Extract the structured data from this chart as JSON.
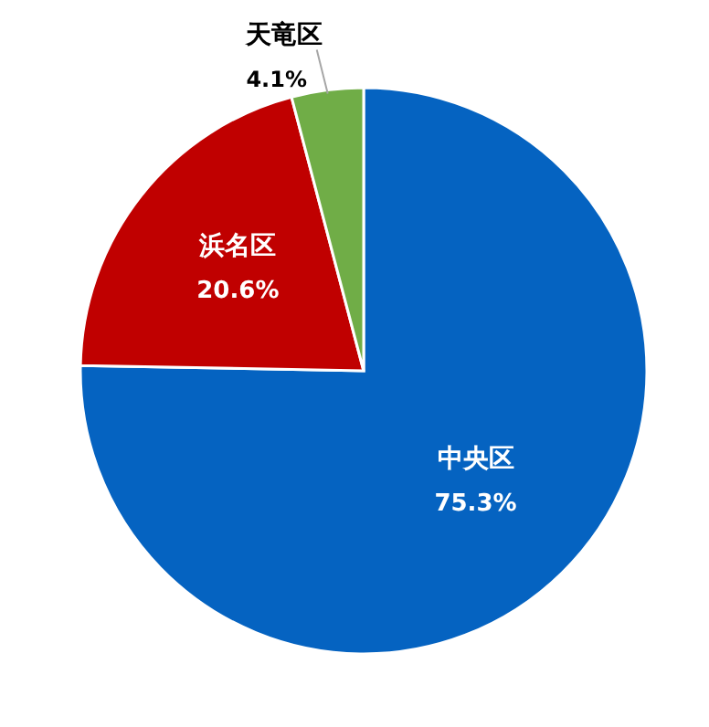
{
  "chart_data": {
    "type": "pie",
    "categories": [
      "中央区",
      "浜名区",
      "天竜区"
    ],
    "values": [
      75.3,
      20.6,
      4.1
    ],
    "colors": [
      "#0563c1",
      "#c00000",
      "#70ad47"
    ],
    "value_labels": [
      "75.3%",
      "20.6%",
      "4.1%"
    ],
    "legend": false
  }
}
